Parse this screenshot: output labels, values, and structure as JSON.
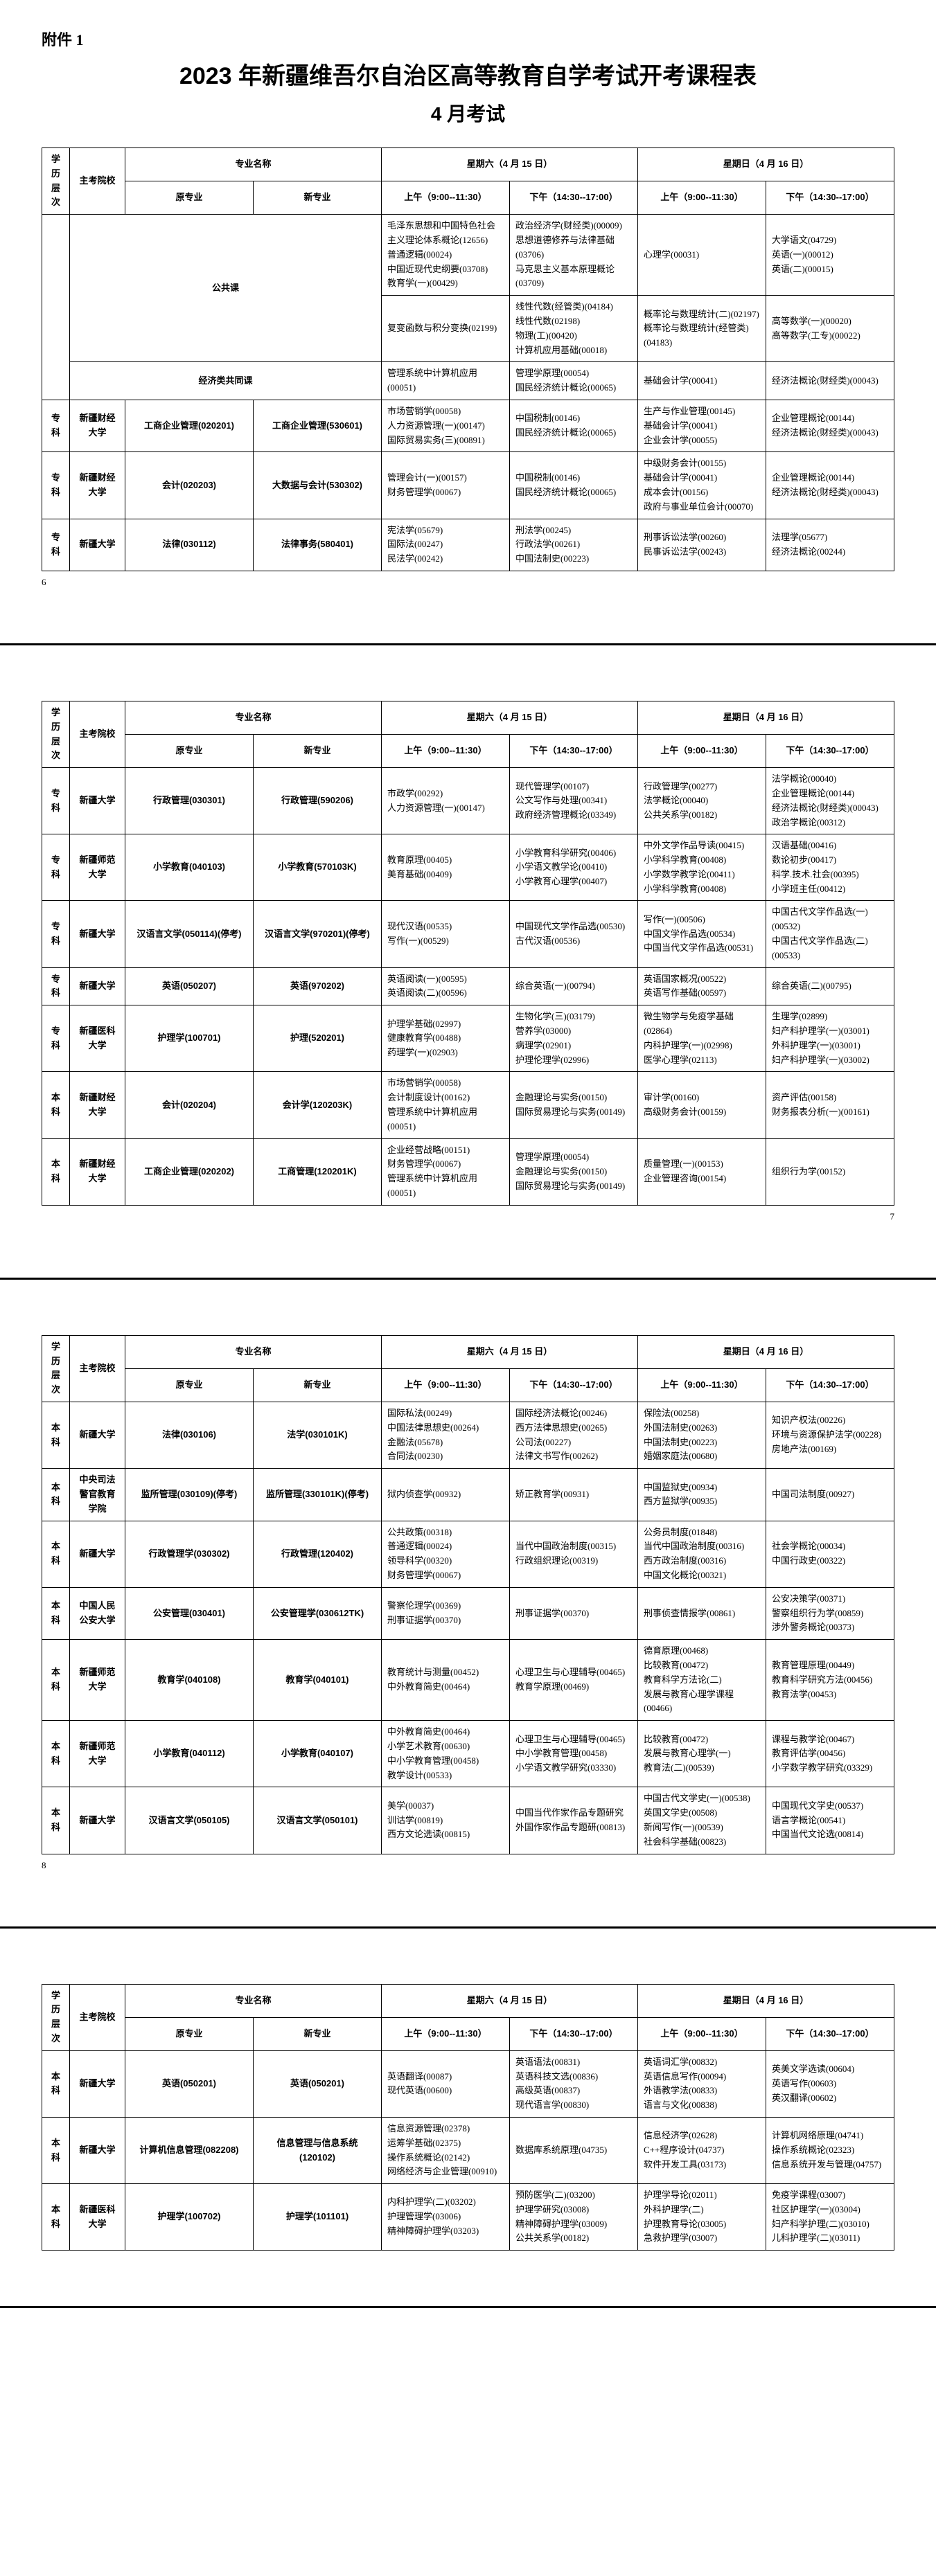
{
  "attachment": "附件 1",
  "title": "2023 年新疆维吾尔自治区高等教育自学考试开考课程表",
  "subtitle": "4 月考试",
  "headers": {
    "level": "学历层次",
    "school": "主考院校",
    "major": "专业名称",
    "major_orig": "原专业",
    "major_new": "新专业",
    "sat": "星期六（4 月 15 日）",
    "sun": "星期日（4 月 16 日）",
    "am": "上午（9:00--11:30）",
    "pm": "下午（14:30--17:00）"
  },
  "page_numbers": [
    "6",
    "7",
    "8"
  ],
  "col_widths": {
    "level": "40px",
    "school": "80px",
    "major_orig": "80px",
    "major_new": "80px",
    "slot": "auto"
  },
  "pages": [
    [
      {
        "level": "",
        "school": "",
        "major_orig": "",
        "major_new_span": 2,
        "major_orig_label": "公共课",
        "rowspan": 2,
        "cells": [
          [
            "毛泽东思想和中国特色社会主义理论体系概论(12656)",
            "普通逻辑(00024)",
            "中国近现代史纲要(03708)",
            "教育学(一)(00429)"
          ],
          [
            "政治经济学(财经类)(00009)",
            "思想道德修养与法律基础(03706)",
            "马克思主义基本原理概论(03709)"
          ],
          [
            "心理学(00031)"
          ],
          [
            "大学语文(04729)",
            "英语(一)(00012)",
            "英语(二)(00015)"
          ]
        ]
      },
      {
        "cells": [
          [
            "复变函数与积分变换(02199)"
          ],
          [
            "线性代数(经管类)(04184)",
            "线性代数(02198)",
            "物理(工)(00420)",
            "计算机应用基础(00018)"
          ],
          [
            "概率论与数理统计(二)(02197)",
            "概率论与数理统计(经管类)(04183)"
          ],
          [
            "高等数学(一)(00020)",
            "高等数学(工专)(00022)"
          ]
        ]
      },
      {
        "level": "",
        "school": "",
        "major_orig_label": "经济类共同课",
        "major_new_span": 3,
        "cells": [
          [
            "管理系统中计算机应用(00051)"
          ],
          [
            "管理学原理(00054)",
            "国民经济统计概论(00065)"
          ],
          [
            "基础会计学(00041)"
          ],
          [
            "经济法概论(财经类)(00043)"
          ]
        ]
      },
      {
        "level": "专科",
        "school": "新疆财经大学",
        "major_orig": "工商企业管理(020201)",
        "major_new": "工商企业管理(530601)",
        "cells": [
          [
            "市场营销学(00058)",
            "人力资源管理(一)(00147)",
            "国际贸易实务(三)(00891)"
          ],
          [
            "中国税制(00146)",
            "国民经济统计概论(00065)"
          ],
          [
            "生产与作业管理(00145)",
            "基础会计学(00041)",
            "企业会计学(00055)"
          ],
          [
            "企业管理概论(00144)",
            "经济法概论(财经类)(00043)"
          ]
        ]
      },
      {
        "level": "专科",
        "school": "新疆财经大学",
        "major_orig": "会计(020203)",
        "major_new": "大数据与会计(530302)",
        "cells": [
          [
            "管理会计(一)(00157)",
            "财务管理学(00067)"
          ],
          [
            "中国税制(00146)",
            "国民经济统计概论(00065)"
          ],
          [
            "中级财务会计(00155)",
            "基础会计学(00041)",
            "成本会计(00156)",
            "政府与事业单位会计(00070)"
          ],
          [
            "企业管理概论(00144)",
            "经济法概论(财经类)(00043)"
          ]
        ]
      },
      {
        "level": "专科",
        "school": "新疆大学",
        "major_orig": "法律(030112)",
        "major_new": "法律事务(580401)",
        "cells": [
          [
            "宪法学(05679)",
            "国际法(00247)",
            "民法学(00242)"
          ],
          [
            "刑法学(00245)",
            "行政法学(00261)",
            "中国法制史(00223)"
          ],
          [
            "刑事诉讼法学(00260)",
            "民事诉讼法学(00243)"
          ],
          [
            "法理学(05677)",
            "经济法概论(00244)"
          ]
        ]
      }
    ],
    [
      {
        "level": "专科",
        "school": "新疆大学",
        "major_orig": "行政管理(030301)",
        "major_new": "行政管理(590206)",
        "cells": [
          [
            "市政学(00292)",
            "人力资源管理(一)(00147)"
          ],
          [
            "现代管理学(00107)",
            "公文写作与处理(00341)",
            "政府经济管理概论(03349)"
          ],
          [
            "行政管理学(00277)",
            "法学概论(00040)",
            "公共关系学(00182)"
          ],
          [
            "法学概论(00040)",
            "企业管理概论(00144)",
            "经济法概论(财经类)(00043)",
            "政治学概论(00312)"
          ]
        ]
      },
      {
        "level": "专科",
        "school": "新疆师范大学",
        "major_orig": "小学教育(040103)",
        "major_new": "小学教育(570103K)",
        "cells": [
          [
            "教育原理(00405)",
            "美育基础(00409)"
          ],
          [
            "小学教育科学研究(00406)",
            "小学语文教学论(00410)",
            "小学教育心理学(00407)"
          ],
          [
            "中外文学作品导读(00415)",
            "小学科学教育(00408)",
            "小学数学教学论(00411)",
            "小学科学教育(00408)"
          ],
          [
            "汉语基础(00416)",
            "数论初步(00417)",
            "科学.技术.社会(00395)",
            "小学班主任(00412)"
          ]
        ]
      },
      {
        "level": "专科",
        "school": "新疆大学",
        "major_orig": "汉语言文学(050114)(停考)",
        "major_new": "汉语言文学(970201)(停考)",
        "cells": [
          [
            "现代汉语(00535)",
            "写作(一)(00529)"
          ],
          [
            "中国现代文学作品选(00530)",
            "古代汉语(00536)"
          ],
          [
            "写作(一)(00506)",
            "中国文学作品选(00534)",
            "中国当代文学作品选(00531)"
          ],
          [
            "中国古代文学作品选(一)(00532)",
            "中国古代文学作品选(二)(00533)"
          ]
        ]
      },
      {
        "level": "专科",
        "school": "新疆大学",
        "major_orig": "英语(050207)",
        "major_new": "英语(970202)",
        "cells": [
          [
            "英语阅读(一)(00595)",
            "英语阅读(二)(00596)"
          ],
          [
            "综合英语(一)(00794)"
          ],
          [
            "英语国家概况(00522)",
            "英语写作基础(00597)"
          ],
          [
            "综合英语(二)(00795)"
          ]
        ]
      },
      {
        "level": "专科",
        "school": "新疆医科大学",
        "major_orig": "护理学(100701)",
        "major_new": "护理(520201)",
        "cells": [
          [
            "护理学基础(02997)",
            "健康教育学(00488)",
            "药理学(一)(02903)"
          ],
          [
            "生物化学(三)(03179)",
            "营养学(03000)",
            "病理学(02901)",
            "护理伦理学(02996)"
          ],
          [
            "微生物学与免疫学基础(02864)",
            "内科护理学(一)(02998)",
            "医学心理学(02113)"
          ],
          [
            "生理学(02899)",
            "妇产科护理学(一)(03001)",
            "外科护理学(一)(03001)",
            "妇产科护理学(一)(03002)"
          ]
        ]
      },
      {
        "level": "本科",
        "school": "新疆财经大学",
        "major_orig": "会计(020204)",
        "major_new": "会计学(120203K)",
        "cells": [
          [
            "市场营销学(00058)",
            "会计制度设计(00162)",
            "管理系统中计算机应用(00051)"
          ],
          [
            "金融理论与实务(00150)",
            "国际贸易理论与实务(00149)"
          ],
          [
            "审计学(00160)",
            "高级财务会计(00159)"
          ],
          [
            "资产评估(00158)",
            "财务报表分析(一)(00161)"
          ]
        ]
      },
      {
        "level": "本科",
        "school": "新疆财经大学",
        "major_orig": "工商企业管理(020202)",
        "major_new": "工商管理(120201K)",
        "cells": [
          [
            "企业经营战略(00151)",
            "财务管理学(00067)",
            "管理系统中计算机应用(00051)"
          ],
          [
            "管理学原理(00054)",
            "金融理论与实务(00150)",
            "国际贸易理论与实务(00149)"
          ],
          [
            "质量管理(一)(00153)",
            "企业管理咨询(00154)"
          ],
          [
            "组织行为学(00152)"
          ]
        ]
      }
    ],
    [
      {
        "level": "本科",
        "school": "新疆大学",
        "major_orig": "法律(030106)",
        "major_new": "法学(030101K)",
        "cells": [
          [
            "国际私法(00249)",
            "中国法律思想史(00264)",
            "金融法(05678)",
            "合同法(00230)"
          ],
          [
            "国际经济法概论(00246)",
            "西方法律思想史(00265)",
            "公司法(00227)",
            "法律文书写作(00262)"
          ],
          [
            "保险法(00258)",
            "外国法制史(00263)",
            "中国法制史(00223)",
            "婚姻家庭法(00680)"
          ],
          [
            "知识产权法(00226)",
            "环境与资源保护法学(00228)",
            "房地产法(00169)"
          ]
        ]
      },
      {
        "level": "本科",
        "school": "中央司法警官教育学院",
        "major_orig": "监所管理(030109)(停考)",
        "major_new": "监所管理(330101K)(停考)",
        "cells": [
          [
            "狱内侦查学(00932)"
          ],
          [
            "矫正教育学(00931)"
          ],
          [
            "中国监狱史(00934)",
            "西方监狱学(00935)"
          ],
          [
            "中国司法制度(00927)"
          ]
        ]
      },
      {
        "level": "本科",
        "school": "新疆大学",
        "major_orig": "行政管理学(030302)",
        "major_new": "行政管理(120402)",
        "cells": [
          [
            "公共政策(00318)",
            "普通逻辑(00024)",
            "领导科学(00320)",
            "财务管理学(00067)"
          ],
          [
            "当代中国政治制度(00315)",
            "行政组织理论(00319)"
          ],
          [
            "公务员制度(01848)",
            "当代中国政治制度(00316)",
            "西方政治制度(00316)",
            "中国文化概论(00321)"
          ],
          [
            "社会学概论(00034)",
            "中国行政史(00322)"
          ]
        ]
      },
      {
        "level": "本科",
        "school": "中国人民公安大学",
        "major_orig": "公安管理(030401)",
        "major_new": "公安管理学(030612TK)",
        "cells": [
          [
            "警察伦理学(00369)",
            "刑事证据学(00370)"
          ],
          [
            "刑事证据学(00370)"
          ],
          [
            "刑事侦查情报学(00861)"
          ],
          [
            "公安决策学(00371)",
            "警察组织行为学(00859)",
            "涉外警务概论(00373)"
          ]
        ]
      },
      {
        "level": "本科",
        "school": "新疆师范大学",
        "major_orig": "教育学(040108)",
        "major_new": "教育学(040101)",
        "cells": [
          [
            "教育统计与测量(00452)",
            "中外教育简史(00464)"
          ],
          [
            "心理卫生与心理辅导(00465)",
            "教育学原理(00469)"
          ],
          [
            "德育原理(00468)",
            "比较教育(00472)",
            "教育科学方法论(二)",
            "发展与教育心理学课程(00466)"
          ],
          [
            "教育管理原理(00449)",
            "教育科学研究方法(00456)",
            "教育法学(00453)"
          ]
        ]
      },
      {
        "level": "本科",
        "school": "新疆师范大学",
        "major_orig": "小学教育(040112)",
        "major_new": "小学教育(040107)",
        "cells": [
          [
            "中外教育简史(00464)",
            "小学艺术教育(00630)",
            "中小学教育管理(00458)",
            "教学设计(00533)"
          ],
          [
            "心理卫生与心理辅导(00465)",
            "中小学教育管理(00458)",
            "小学语文教学研究(03330)"
          ],
          [
            "比较教育(00472)",
            "发展与教育心理学(一)",
            "教育法(二)(00539)"
          ],
          [
            "课程与教学论(00467)",
            "教育评估学(00456)",
            "小学数学教学研究(03329)"
          ]
        ]
      },
      {
        "level": "本科",
        "school": "新疆大学",
        "major_orig": "汉语言文学(050105)",
        "major_new": "汉语言文学(050101)",
        "cells": [
          [
            "美学(00037)",
            "训诂学(00819)",
            "西方文论选读(00815)"
          ],
          [
            "中国当代作家作品专题研究",
            "外国作家作品专题研(00813)"
          ],
          [
            "中国古代文学史(一)(00538)",
            "英国文学史(00508)",
            "新闻写作(一)(00539)",
            "社会科学基础(00823)"
          ],
          [
            "中国现代文学史(00537)",
            "语言学概论(00541)",
            "中国当代文论选(00814)"
          ]
        ]
      }
    ],
    [
      {
        "level": "本科",
        "school": "新疆大学",
        "major_orig": "英语(050201)",
        "major_new": "英语(050201)",
        "cells": [
          [
            "英语翻译(00087)",
            "现代英语(00600)"
          ],
          [
            "英语语法(00831)",
            "英语科技文选(00836)",
            "高级英语(00837)",
            "现代语言学(00830)"
          ],
          [
            "英语词汇学(00832)",
            "英语信息写作(00094)",
            "外语教学法(00833)",
            "语言与文化(00838)"
          ],
          [
            "英美文学选读(00604)",
            "英语写作(00603)",
            "英汉翻译(00602)"
          ]
        ]
      },
      {
        "level": "本科",
        "school": "新疆大学",
        "major_orig": "计算机信息管理(082208)",
        "major_new": "信息管理与信息系统(120102)",
        "cells": [
          [
            "信息资源管理(02378)",
            "运筹学基础(02375)",
            "操作系统概论(02142)",
            "网络经济与企业管理(00910)"
          ],
          [
            "数据库系统原理(04735)"
          ],
          [
            "信息经济学(02628)",
            "C++程序设计(04737)",
            "软件开发工具(03173)"
          ],
          [
            "计算机网络原理(04741)",
            "操作系统概论(02323)",
            "信息系统开发与管理(04757)"
          ]
        ]
      },
      {
        "level": "本科",
        "school": "新疆医科大学",
        "major_orig": "护理学(100702)",
        "major_new": "护理学(101101)",
        "cells": [
          [
            "内科护理学(二)(03202)",
            "护理管理学(03006)",
            "精神障碍护理学(03203)"
          ],
          [
            "预防医学(二)(03200)",
            "护理学研究(03008)",
            "精神障碍护理学(03009)",
            "公共关系学(00182)"
          ],
          [
            "护理学导论(02011)",
            "外科护理学(二)",
            "护理教育导论(03005)",
            "急救护理学(03007)"
          ],
          [
            "免疫学课程(03007)",
            "社区护理学(一)(03004)",
            "妇产科学护理(二)(03010)",
            "儿科护理学(二)(03011)"
          ]
        ]
      }
    ]
  ]
}
